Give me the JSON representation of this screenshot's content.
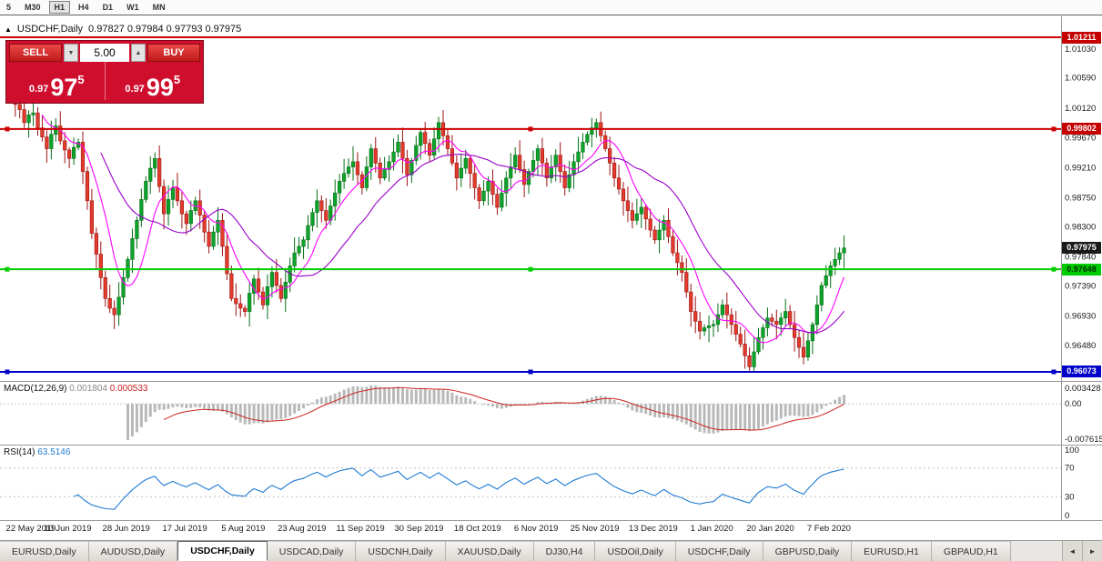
{
  "toolbar": {
    "timeframes": [
      {
        "label": "5",
        "active": false
      },
      {
        "label": "M30",
        "active": false
      },
      {
        "label": "H1",
        "active": true
      },
      {
        "label": "H4",
        "active": false
      },
      {
        "label": "D1",
        "active": false
      },
      {
        "label": "W1",
        "active": false
      },
      {
        "label": "MN",
        "active": false
      }
    ]
  },
  "chart": {
    "title_symbol": "USDCHF,Daily",
    "title_ohlc": "0.97827 0.97984 0.97793 0.97975",
    "collapse_icon": "▲"
  },
  "one_click": {
    "sell_label": "SELL",
    "buy_label": "BUY",
    "volume": "5.00",
    "spin_down": "▼",
    "spin_up": "▲",
    "sell_price_prefix": "0.97",
    "sell_price_big": "97",
    "sell_price_sup": "5",
    "buy_price_prefix": "0.97",
    "buy_price_big": "99",
    "buy_price_sup": "5"
  },
  "price_scale": {
    "labels": [
      "1.01030",
      "1.00590",
      "1.00120",
      "0.99670",
      "0.99210",
      "0.98750",
      "0.98300",
      "0.97840",
      "0.97390",
      "0.96930",
      "0.96480"
    ],
    "badges": [
      {
        "text": "1.01211",
        "price": 1.01211,
        "bg": "#c40000",
        "fg": "#ffffff"
      },
      {
        "text": "0.99802",
        "price": 0.99802,
        "bg": "#c40000",
        "fg": "#ffffff"
      },
      {
        "text": "0.97975",
        "price": 0.97975,
        "bg": "#1a1a1a",
        "fg": "#ffffff"
      },
      {
        "text": "0.97648",
        "price": 0.97648,
        "bg": "#00cc00",
        "fg": "#002a00"
      },
      {
        "text": "0.96073",
        "price": 0.96073,
        "bg": "#0000c8",
        "fg": "#ffffff"
      }
    ]
  },
  "levels": [
    {
      "price": 1.01211,
      "color": "#cc0000",
      "width": 2,
      "handles": false
    },
    {
      "price": 0.99802,
      "color": "#cc0000",
      "width": 2,
      "handles": true
    },
    {
      "price": 0.97648,
      "color": "#00cc00",
      "width": 2,
      "handles": true
    },
    {
      "price": 0.96073,
      "color": "#0000c8",
      "width": 2,
      "handles": true
    }
  ],
  "macd": {
    "name": "MACD(12,26,9)",
    "value": "0.001804",
    "signal": "0.000533",
    "scale_top": "0.003428",
    "scale_zero": "0.00",
    "scale_bottom": "-0.007615"
  },
  "rsi": {
    "name": "RSI(14)",
    "value": "63.5146",
    "scale": [
      "100",
      "70",
      "30",
      "0"
    ],
    "level_lines": [
      70,
      30
    ]
  },
  "dates": [
    "22 May 2019",
    "10 Jun 2019",
    "28 Jun 2019",
    "17 Jul 2019",
    "5 Aug 2019",
    "23 Aug 2019",
    "11 Sep 2019",
    "30 Sep 2019",
    "18 Oct 2019",
    "6 Nov 2019",
    "25 Nov 2019",
    "13 Dec 2019",
    "1 Jan 2020",
    "20 Jan 2020",
    "7 Feb 2020"
  ],
  "tabs": {
    "items": [
      {
        "label": "EURUSD,Daily",
        "active": false
      },
      {
        "label": "AUDUSD,Daily",
        "active": false
      },
      {
        "label": "USDCHF,Daily",
        "active": true
      },
      {
        "label": "USDCAD,Daily",
        "active": false
      },
      {
        "label": "USDCNH,Daily",
        "active": false
      },
      {
        "label": "XAUUSD,Daily",
        "active": false
      },
      {
        "label": "DJ30,H4",
        "active": false
      },
      {
        "label": "USDOil,Daily",
        "active": false
      },
      {
        "label": "USDCHF,Daily",
        "active": false
      },
      {
        "label": "GBPUSD,Daily",
        "active": false
      },
      {
        "label": "EURUSD,H1",
        "active": false
      },
      {
        "label": "GBPAUD,H1",
        "active": false
      }
    ],
    "nav_left": "◄",
    "nav_right": "►"
  },
  "chart_data": {
    "type": "candlestick",
    "symbol": "USDCHF",
    "timeframe": "Daily",
    "title": "USDCHF,Daily",
    "ohlc_last": {
      "open": 0.97827,
      "high": 0.97984,
      "low": 0.97793,
      "close": 0.97975
    },
    "y_axis": {
      "min": 0.9595,
      "max": 1.0135
    },
    "x_axis_dates": [
      "22 May 2019",
      "10 Jun 2019",
      "28 Jun 2019",
      "17 Jul 2019",
      "5 Aug 2019",
      "23 Aug 2019",
      "11 Sep 2019",
      "30 Sep 2019",
      "18 Oct 2019",
      "6 Nov 2019",
      "25 Nov 2019",
      "13 Dec 2019",
      "1 Jan 2020",
      "20 Jan 2020",
      "7 Feb 2020"
    ],
    "horizontal_levels": [
      1.01211,
      0.99802,
      0.97648,
      0.96073
    ],
    "closes": [
      1.004,
      1.0018,
      1.001,
      0.999,
      1.0002,
      1.0005,
      0.9982,
      0.9968,
      0.995,
      0.9972,
      0.9985,
      0.9962,
      0.9948,
      0.9935,
      0.9952,
      0.996,
      0.9915,
      0.987,
      0.982,
      0.9788,
      0.9752,
      0.972,
      0.9705,
      0.9695,
      0.9722,
      0.9752,
      0.978,
      0.9812,
      0.984,
      0.9872,
      0.99,
      0.992,
      0.9935,
      0.9892,
      0.985,
      0.9872,
      0.989,
      0.987,
      0.985,
      0.9835,
      0.9855,
      0.987,
      0.9848,
      0.9822,
      0.98,
      0.9822,
      0.984,
      0.98,
      0.9758,
      0.972,
      0.9712,
      0.9705,
      0.97,
      0.9728,
      0.975,
      0.973,
      0.971,
      0.9738,
      0.976,
      0.974,
      0.972,
      0.9745,
      0.977,
      0.979,
      0.98,
      0.981,
      0.9832,
      0.9852,
      0.987,
      0.9855,
      0.984,
      0.9862,
      0.9882,
      0.99,
      0.9912,
      0.9922,
      0.993,
      0.991,
      0.989,
      0.9922,
      0.995,
      0.9928,
      0.9905,
      0.9918,
      0.993,
      0.9945,
      0.996,
      0.9935,
      0.991,
      0.9932,
      0.9955,
      0.9975,
      0.9958,
      0.994,
      0.9965,
      0.999,
      0.997,
      0.995,
      0.9928,
      0.9905,
      0.992,
      0.9935,
      0.9912,
      0.989,
      0.987,
      0.9885,
      0.99,
      0.988,
      0.986,
      0.9882,
      0.9905,
      0.9922,
      0.994,
      0.9918,
      0.9895,
      0.9915,
      0.9932,
      0.995,
      0.9928,
      0.9905,
      0.9922,
      0.994,
      0.9915,
      0.989,
      0.991,
      0.993,
      0.9945,
      0.996,
      0.9972,
      0.9982,
      0.999,
      0.997,
      0.995,
      0.9928,
      0.9905,
      0.9888,
      0.987,
      0.9855,
      0.984,
      0.985,
      0.986,
      0.9842,
      0.9825,
      0.981,
      0.9825,
      0.984,
      0.9815,
      0.979,
      0.9775,
      0.976,
      0.973,
      0.97,
      0.9685,
      0.967,
      0.9675,
      0.9678,
      0.968,
      0.9695,
      0.971,
      0.9695,
      0.968,
      0.9665,
      0.965,
      0.9632,
      0.9615,
      0.9638,
      0.966,
      0.9675,
      0.969,
      0.9685,
      0.968,
      0.969,
      0.97,
      0.968,
      0.966,
      0.9645,
      0.963,
      0.9655,
      0.968,
      0.971,
      0.974,
      0.9755,
      0.977,
      0.978,
      0.979,
      0.97975
    ],
    "indicators": {
      "macd": {
        "fast": 12,
        "slow": 26,
        "signal_period": 9,
        "current": 0.001804,
        "current_signal": 0.000533
      },
      "rsi": {
        "period": 14,
        "current": 63.5146
      },
      "moving_averages": [
        "fast-magenta",
        "slow-purple"
      ]
    }
  }
}
